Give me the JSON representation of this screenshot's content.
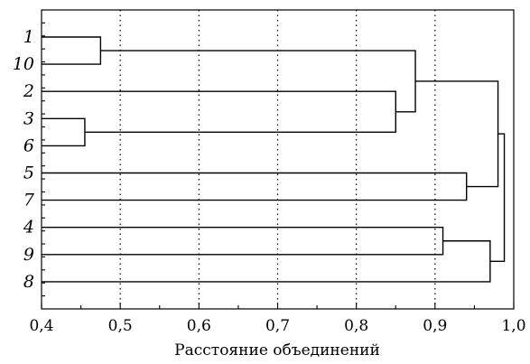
{
  "chart_data": {
    "type": "dendrogram",
    "orientation": "horizontal",
    "leaves": [
      "1",
      "10",
      "2",
      "3",
      "6",
      "5",
      "7",
      "4",
      "9",
      "8"
    ],
    "merges": [
      {
        "id": "m_3_6",
        "children": [
          "3",
          "6"
        ],
        "distance": 0.455
      },
      {
        "id": "m_1_10",
        "children": [
          "1",
          "10"
        ],
        "distance": 0.475
      },
      {
        "id": "m_2_36",
        "children": [
          "2",
          "m_3_6"
        ],
        "distance": 0.85
      },
      {
        "id": "m_110_236",
        "children": [
          "m_1_10",
          "m_2_36"
        ],
        "distance": 0.875
      },
      {
        "id": "m_4_9",
        "children": [
          "4",
          "9"
        ],
        "distance": 0.91
      },
      {
        "id": "m_5_7",
        "children": [
          "5",
          "7"
        ],
        "distance": 0.94
      },
      {
        "id": "m_49_8",
        "children": [
          "m_4_9",
          "8"
        ],
        "distance": 0.97
      },
      {
        "id": "m_A_57",
        "children": [
          "m_110_236",
          "m_5_7"
        ],
        "distance": 0.98
      },
      {
        "id": "m_root",
        "children": [
          "m_A_57",
          "m_49_8"
        ],
        "distance": 0.988
      }
    ],
    "xlim": [
      0.4,
      1.0
    ],
    "x_ticks": [
      0.4,
      0.5,
      0.6,
      0.7,
      0.8,
      0.9,
      1.0
    ],
    "x_tick_labels": [
      "0,4",
      "0,5",
      "0,6",
      "0,7",
      "0,8",
      "0,9",
      "1,0"
    ],
    "grid_lines": [
      0.5,
      0.6,
      0.7,
      0.8,
      0.9
    ],
    "grid": "dotted vertical",
    "xlabel": "Расстояние объединений",
    "ylabel": "",
    "title": ""
  }
}
